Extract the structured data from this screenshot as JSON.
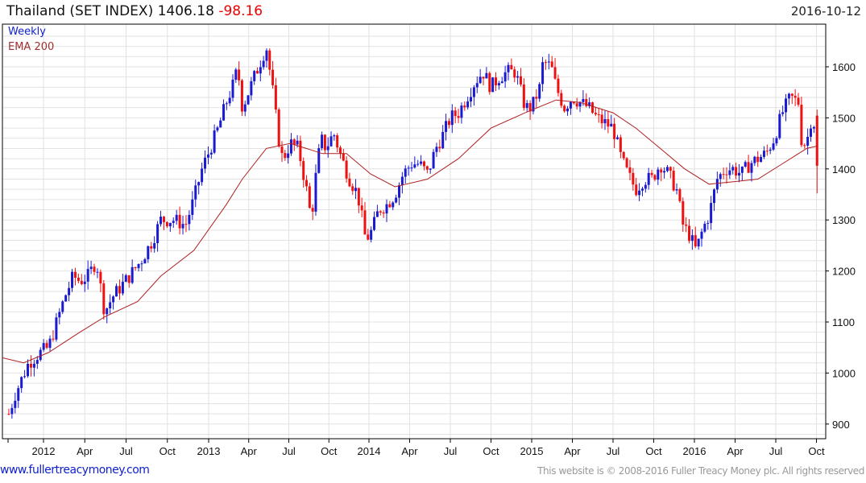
{
  "header": {
    "title": "Thailand (SET INDEX) 1406.18",
    "change": "-98.16",
    "date": "2016-10-12"
  },
  "legend": {
    "weekly": "Weekly",
    "ema": "EMA 200"
  },
  "footer": {
    "site": "www.fullertreacymoney.com",
    "copyright": "This website is © 2008-2016 Fuller Treacy Money plc. All rights reserved"
  },
  "colors": {
    "up": "#1a1ad0",
    "down": "#ee1111",
    "ema": "#b02020",
    "grid": "#e2e2e2"
  },
  "chart_data": {
    "type": "candlestick",
    "frequency": "weekly",
    "ylim": [
      880,
      1660
    ],
    "yticks": [
      900,
      1000,
      1100,
      1200,
      1300,
      1400,
      1500,
      1600
    ],
    "xticks": [
      {
        "t": 2012.0,
        "label": "2012"
      },
      {
        "t": 2012.25,
        "label": "Apr"
      },
      {
        "t": 2012.5,
        "label": "Jul"
      },
      {
        "t": 2012.75,
        "label": "Oct"
      },
      {
        "t": 2013.0,
        "label": "2013"
      },
      {
        "t": 2013.25,
        "label": "Apr"
      },
      {
        "t": 2013.5,
        "label": "Jul"
      },
      {
        "t": 2013.75,
        "label": "Oct"
      },
      {
        "t": 2014.0,
        "label": "2014"
      },
      {
        "t": 2014.25,
        "label": "Apr"
      },
      {
        "t": 2014.5,
        "label": "Jul"
      },
      {
        "t": 2014.75,
        "label": "Oct"
      },
      {
        "t": 2015.0,
        "label": "2015"
      },
      {
        "t": 2015.25,
        "label": "Apr"
      },
      {
        "t": 2015.5,
        "label": "Jul"
      },
      {
        "t": 2015.75,
        "label": "Oct"
      },
      {
        "t": 2016.0,
        "label": "2016"
      },
      {
        "t": 2016.25,
        "label": "Apr"
      },
      {
        "t": 2016.5,
        "label": "Jul"
      },
      {
        "t": 2016.75,
        "label": "Oct"
      }
    ],
    "close": [
      [
        2011.79,
        920
      ],
      [
        2011.83,
        960
      ],
      [
        2011.91,
        1020
      ],
      [
        2011.98,
        1040
      ],
      [
        2012.03,
        1050
      ],
      [
        2012.08,
        1100
      ],
      [
        2012.13,
        1150
      ],
      [
        2012.18,
        1190
      ],
      [
        2012.22,
        1180
      ],
      [
        2012.27,
        1190
      ],
      [
        2012.32,
        1220
      ],
      [
        2012.37,
        1120
      ],
      [
        2012.42,
        1150
      ],
      [
        2012.47,
        1170
      ],
      [
        2012.52,
        1190
      ],
      [
        2012.59,
        1220
      ],
      [
        2012.66,
        1260
      ],
      [
        2012.71,
        1300
      ],
      [
        2012.79,
        1300
      ],
      [
        2012.86,
        1290
      ],
      [
        2012.91,
        1340
      ],
      [
        2012.96,
        1400
      ],
      [
        2013.01,
        1440
      ],
      [
        2013.06,
        1480
      ],
      [
        2013.11,
        1530
      ],
      [
        2013.16,
        1570
      ],
      [
        2013.18,
        1600
      ],
      [
        2013.21,
        1520
      ],
      [
        2013.26,
        1560
      ],
      [
        2013.31,
        1600
      ],
      [
        2013.36,
        1640
      ],
      [
        2013.41,
        1530
      ],
      [
        2013.43,
        1470
      ],
      [
        2013.46,
        1420
      ],
      [
        2013.48,
        1430
      ],
      [
        2013.51,
        1450
      ],
      [
        2013.56,
        1440
      ],
      [
        2013.61,
        1360
      ],
      [
        2013.64,
        1300
      ],
      [
        2013.68,
        1420
      ],
      [
        2013.71,
        1460
      ],
      [
        2013.73,
        1440
      ],
      [
        2013.78,
        1470
      ],
      [
        2013.83,
        1420
      ],
      [
        2013.88,
        1380
      ],
      [
        2013.93,
        1350
      ],
      [
        2013.98,
        1260
      ],
      [
        2014.02,
        1280
      ],
      [
        2014.06,
        1320
      ],
      [
        2014.11,
        1330
      ],
      [
        2014.16,
        1350
      ],
      [
        2014.21,
        1390
      ],
      [
        2014.26,
        1410
      ],
      [
        2014.31,
        1410
      ],
      [
        2014.36,
        1390
      ],
      [
        2014.41,
        1440
      ],
      [
        2014.46,
        1470
      ],
      [
        2014.5,
        1500
      ],
      [
        2014.55,
        1510
      ],
      [
        2014.6,
        1540
      ],
      [
        2014.65,
        1570
      ],
      [
        2014.7,
        1590
      ],
      [
        2014.75,
        1560
      ],
      [
        2014.8,
        1580
      ],
      [
        2014.85,
        1590
      ],
      [
        2014.9,
        1590
      ],
      [
        2014.96,
        1520
      ],
      [
        2015.0,
        1520
      ],
      [
        2015.05,
        1560
      ],
      [
        2015.07,
        1610
      ],
      [
        2015.12,
        1600
      ],
      [
        2015.15,
        1560
      ],
      [
        2015.2,
        1520
      ],
      [
        2015.25,
        1540
      ],
      [
        2015.3,
        1530
      ],
      [
        2015.35,
        1520
      ],
      [
        2015.4,
        1500
      ],
      [
        2015.45,
        1490
      ],
      [
        2015.5,
        1480
      ],
      [
        2015.55,
        1420
      ],
      [
        2015.59,
        1390
      ],
      [
        2015.64,
        1360
      ],
      [
        2015.69,
        1380
      ],
      [
        2015.74,
        1380
      ],
      [
        2015.79,
        1410
      ],
      [
        2015.84,
        1390
      ],
      [
        2015.89,
        1360
      ],
      [
        2015.93,
        1290
      ],
      [
        2015.97,
        1270
      ],
      [
        2016.01,
        1240
      ],
      [
        2016.05,
        1280
      ],
      [
        2016.09,
        1310
      ],
      [
        2016.14,
        1380
      ],
      [
        2016.19,
        1400
      ],
      [
        2016.24,
        1400
      ],
      [
        2016.29,
        1390
      ],
      [
        2016.34,
        1410
      ],
      [
        2016.39,
        1420
      ],
      [
        2016.44,
        1430
      ],
      [
        2016.49,
        1460
      ],
      [
        2016.54,
        1510
      ],
      [
        2016.59,
        1540
      ],
      [
        2016.64,
        1530
      ],
      [
        2016.66,
        1450
      ],
      [
        2016.69,
        1450
      ],
      [
        2016.71,
        1490
      ],
      [
        2016.73,
        1504.34
      ],
      [
        2016.76,
        1406.18
      ]
    ],
    "ema200": [
      [
        2011.75,
        1030
      ],
      [
        2011.88,
        1020
      ],
      [
        2012.03,
        1040
      ],
      [
        2012.22,
        1080
      ],
      [
        2012.37,
        1110
      ],
      [
        2012.57,
        1140
      ],
      [
        2012.71,
        1190
      ],
      [
        2012.91,
        1240
      ],
      [
        2013.11,
        1330
      ],
      [
        2013.21,
        1380
      ],
      [
        2013.36,
        1440
      ],
      [
        2013.51,
        1450
      ],
      [
        2013.71,
        1430
      ],
      [
        2013.86,
        1430
      ],
      [
        2014.01,
        1390
      ],
      [
        2014.16,
        1365
      ],
      [
        2014.36,
        1380
      ],
      [
        2014.55,
        1420
      ],
      [
        2014.75,
        1480
      ],
      [
        2014.96,
        1510
      ],
      [
        2015.15,
        1535
      ],
      [
        2015.3,
        1530
      ],
      [
        2015.5,
        1510
      ],
      [
        2015.64,
        1480
      ],
      [
        2015.79,
        1440
      ],
      [
        2015.94,
        1400
      ],
      [
        2016.09,
        1370
      ],
      [
        2016.24,
        1375
      ],
      [
        2016.39,
        1380
      ],
      [
        2016.54,
        1410
      ],
      [
        2016.69,
        1440
      ],
      [
        2016.76,
        1445
      ]
    ]
  }
}
